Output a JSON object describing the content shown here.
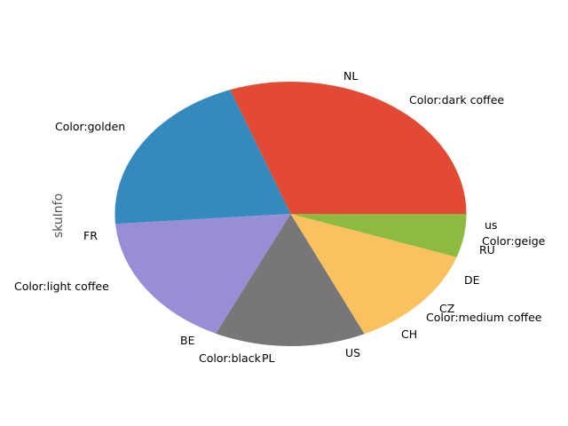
{
  "chart_data": {
    "type": "pie",
    "ylabel": "skuInfo",
    "start_angle_deg": 0,
    "direction": "counterclockwise",
    "slices": [
      {
        "name": "Color:dark coffee",
        "value": 30.6,
        "color": "#E24A33",
        "outer_labels": [
          "NL",
          "Color:dark coffee"
        ]
      },
      {
        "name": "Color:golden",
        "value": 20.6,
        "color": "#348ABD",
        "outer_labels": [
          "Color:golden"
        ]
      },
      {
        "name": "Color:light coffee",
        "value": 16.8,
        "color": "#988ED5",
        "outer_labels": [
          "FR",
          "Color:light coffee",
          "BE"
        ]
      },
      {
        "name": "Color:black",
        "value": 13.9,
        "color": "#777777",
        "outer_labels": [
          "Color:black",
          "PL",
          "US"
        ]
      },
      {
        "name": "Color:medium coffee",
        "value": 12.8,
        "color": "#FBC15E",
        "outer_labels": [
          "CH",
          "Color:medium coffee",
          "CZ",
          "DE"
        ]
      },
      {
        "name": "Color:geige",
        "value": 5.3,
        "color": "#8EBA42",
        "outer_labels": [
          "RU",
          "Color:geige",
          "us"
        ]
      }
    ]
  }
}
